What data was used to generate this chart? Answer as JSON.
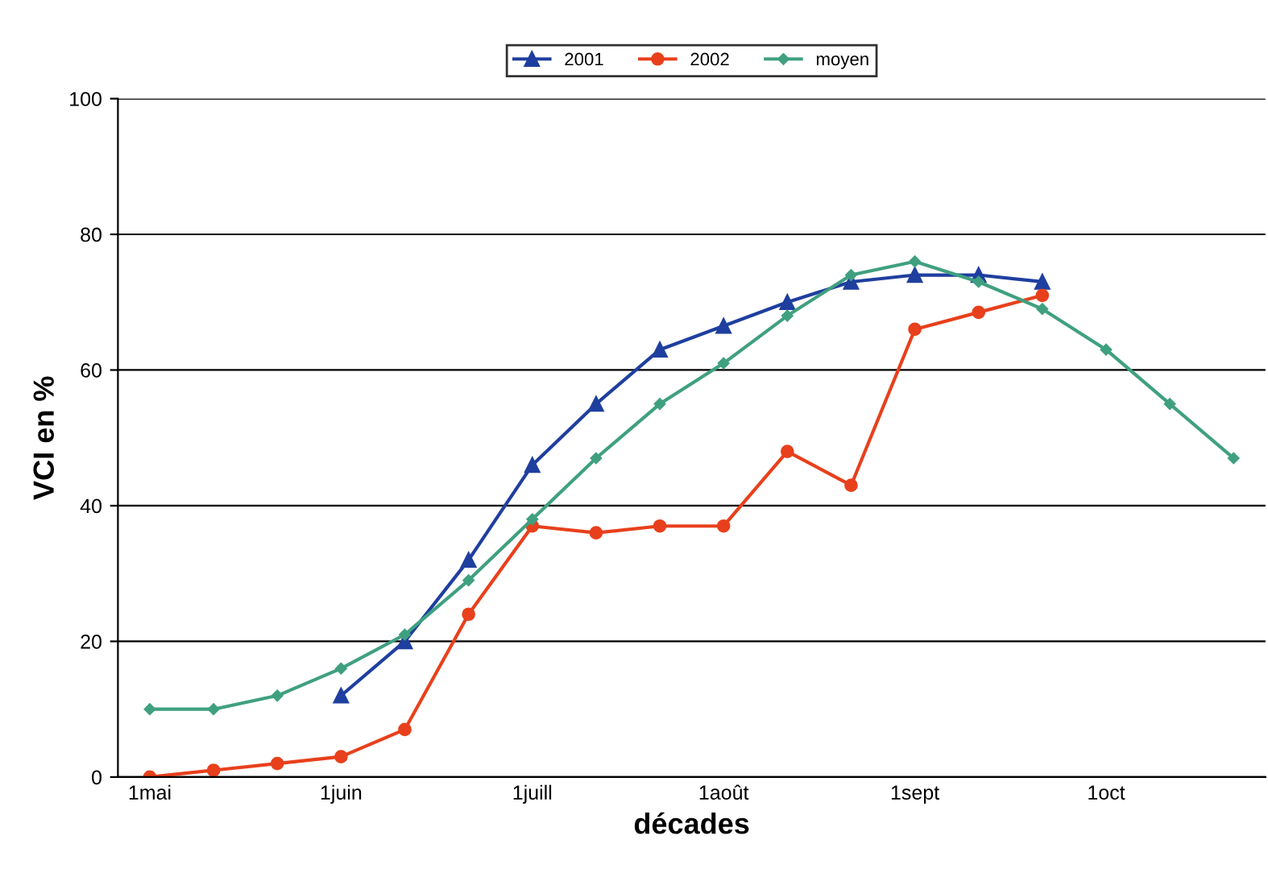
{
  "chart_data": {
    "type": "line",
    "xlabel": "décades",
    "ylabel": "VCI en %",
    "categories": [
      "1mai",
      null,
      null,
      "1juin",
      null,
      null,
      "1juill",
      null,
      null,
      "1août",
      null,
      null,
      "1sept",
      null,
      null,
      "1oct",
      null,
      null
    ],
    "series": [
      {
        "name": "2001",
        "color": "#1f3f9f",
        "marker": "triangle",
        "values": [
          null,
          null,
          null,
          12,
          20,
          32,
          46,
          55,
          63,
          66.5,
          70,
          73,
          74,
          74,
          73,
          null,
          null,
          null
        ]
      },
      {
        "name": "2002",
        "color": "#e8401c",
        "marker": "circle",
        "values": [
          0,
          1,
          2,
          3,
          7,
          24,
          37,
          36,
          37,
          37,
          48,
          43,
          66,
          68.5,
          71,
          null,
          null,
          null
        ]
      },
      {
        "name": "moyen",
        "color": "#3fa080",
        "marker": "diamond",
        "values": [
          10,
          10,
          12,
          16,
          21,
          29,
          38,
          47,
          55,
          61,
          68,
          74,
          76,
          73,
          69,
          63,
          55,
          47
        ]
      }
    ],
    "ylim": [
      0,
      100
    ],
    "yticks": [
      0,
      20,
      40,
      60,
      80,
      100
    ],
    "grid": "y",
    "legend": "top",
    "line_style": "solid"
  }
}
